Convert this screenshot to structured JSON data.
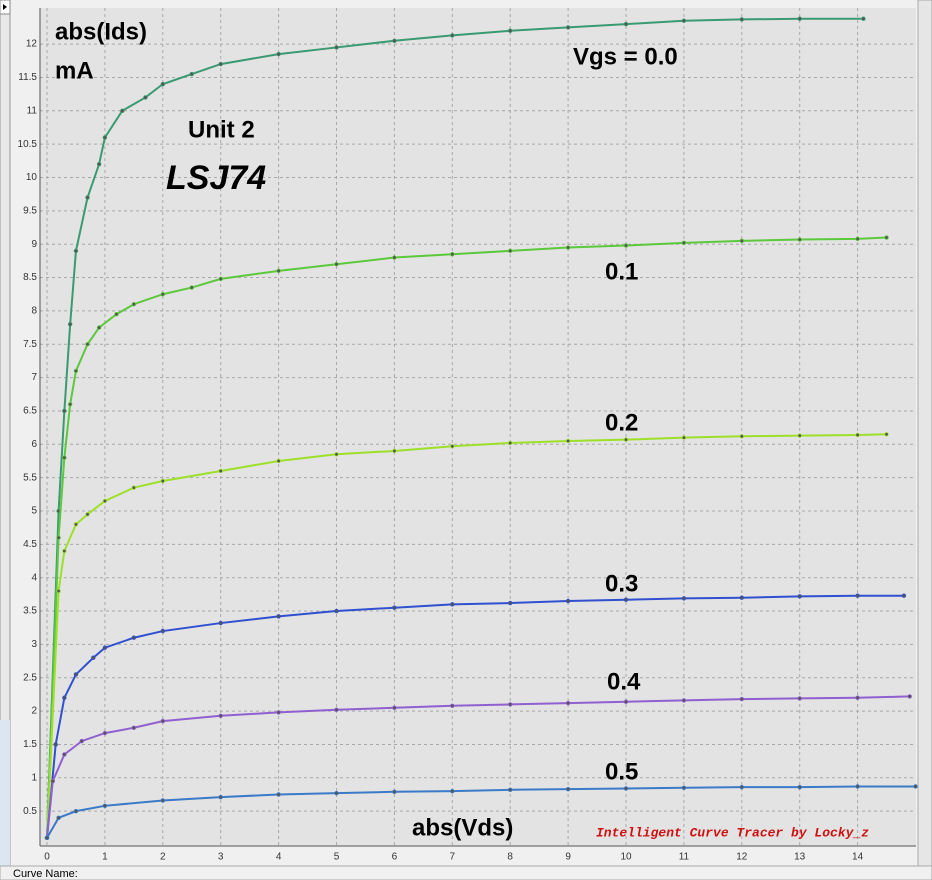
{
  "chart_data": {
    "type": "line",
    "ylabel": "abs(Ids)",
    "yunit": "mA",
    "xlabel": "abs(Vds)",
    "annotations": [
      "Unit 2",
      "LSJ74"
    ],
    "watermark": "Intelligent Curve Tracer by Locky_z",
    "xlim": [
      0,
      15
    ],
    "ylim": [
      0,
      12.5
    ],
    "xticks": [
      0,
      1,
      2,
      3,
      4,
      5,
      6,
      7,
      8,
      9,
      10,
      11,
      12,
      13,
      14
    ],
    "yticks": [
      0.5,
      1,
      1.5,
      2,
      2.5,
      3,
      3.5,
      4,
      4.5,
      5,
      5.5,
      6,
      6.5,
      7,
      7.5,
      8,
      8.5,
      9,
      9.5,
      10,
      10.5,
      11,
      11.5,
      12
    ],
    "grid": true,
    "series": [
      {
        "name": "Vgs = 0.0",
        "color": "#3a9a72",
        "x": [
          0,
          0.2,
          0.3,
          0.4,
          0.5,
          0.7,
          0.9,
          1,
          1.3,
          1.7,
          2,
          2.5,
          3,
          4,
          5,
          6,
          7,
          8,
          9,
          10,
          11,
          12,
          13,
          14.1
        ],
        "values": [
          0.1,
          5.0,
          6.5,
          7.8,
          8.9,
          9.7,
          10.2,
          10.6,
          11.0,
          11.2,
          11.4,
          11.55,
          11.7,
          11.85,
          11.95,
          12.05,
          12.13,
          12.2,
          12.25,
          12.3,
          12.35,
          12.37,
          12.38,
          12.38
        ]
      },
      {
        "name": "0.1",
        "color": "#5cc83c",
        "x": [
          0,
          0.2,
          0.3,
          0.4,
          0.5,
          0.7,
          0.9,
          1.2,
          1.5,
          2,
          2.5,
          3,
          4,
          5,
          6,
          7,
          8,
          9,
          10,
          11,
          12,
          13,
          14,
          14.5
        ],
        "values": [
          0.1,
          4.6,
          5.8,
          6.6,
          7.1,
          7.5,
          7.75,
          7.95,
          8.1,
          8.25,
          8.35,
          8.48,
          8.6,
          8.7,
          8.8,
          8.85,
          8.9,
          8.95,
          8.98,
          9.02,
          9.05,
          9.07,
          9.08,
          9.1
        ]
      },
      {
        "name": "0.2",
        "color": "#9de02a",
        "x": [
          0,
          0.2,
          0.3,
          0.5,
          0.7,
          1,
          1.5,
          2,
          3,
          4,
          5,
          6,
          7,
          8,
          9,
          10,
          11,
          12,
          13,
          14,
          14.5
        ],
        "values": [
          0.1,
          3.8,
          4.4,
          4.8,
          4.95,
          5.15,
          5.35,
          5.45,
          5.6,
          5.75,
          5.85,
          5.9,
          5.97,
          6.02,
          6.05,
          6.07,
          6.1,
          6.12,
          6.13,
          6.14,
          6.15
        ]
      },
      {
        "name": "0.3",
        "color": "#3050d0",
        "x": [
          0,
          0.15,
          0.3,
          0.5,
          0.8,
          1,
          1.5,
          2,
          3,
          4,
          5,
          6,
          7,
          8,
          9,
          10,
          11,
          12,
          13,
          14,
          14.8
        ],
        "values": [
          0.1,
          1.5,
          2.2,
          2.55,
          2.8,
          2.95,
          3.1,
          3.2,
          3.32,
          3.42,
          3.5,
          3.55,
          3.6,
          3.62,
          3.65,
          3.67,
          3.69,
          3.7,
          3.72,
          3.73,
          3.73
        ]
      },
      {
        "name": "0.4",
        "color": "#9060d0",
        "x": [
          0,
          0.1,
          0.3,
          0.6,
          1,
          1.5,
          2,
          3,
          4,
          5,
          6,
          7,
          8,
          9,
          10,
          11,
          12,
          13,
          14,
          14.9
        ],
        "values": [
          0.1,
          0.95,
          1.35,
          1.55,
          1.67,
          1.75,
          1.85,
          1.93,
          1.98,
          2.02,
          2.05,
          2.08,
          2.1,
          2.12,
          2.14,
          2.16,
          2.18,
          2.19,
          2.2,
          2.22
        ]
      },
      {
        "name": "0.5",
        "color": "#3a7ac8",
        "x": [
          0,
          0.2,
          0.5,
          1,
          2,
          3,
          4,
          5,
          6,
          7,
          8,
          9,
          10,
          11,
          12,
          13,
          14,
          15
        ],
        "values": [
          0.1,
          0.4,
          0.5,
          0.58,
          0.66,
          0.71,
          0.75,
          0.77,
          0.79,
          0.8,
          0.82,
          0.83,
          0.84,
          0.85,
          0.86,
          0.86,
          0.87,
          0.87
        ]
      }
    ]
  },
  "status_bar": {
    "label": "Curve Name:"
  }
}
